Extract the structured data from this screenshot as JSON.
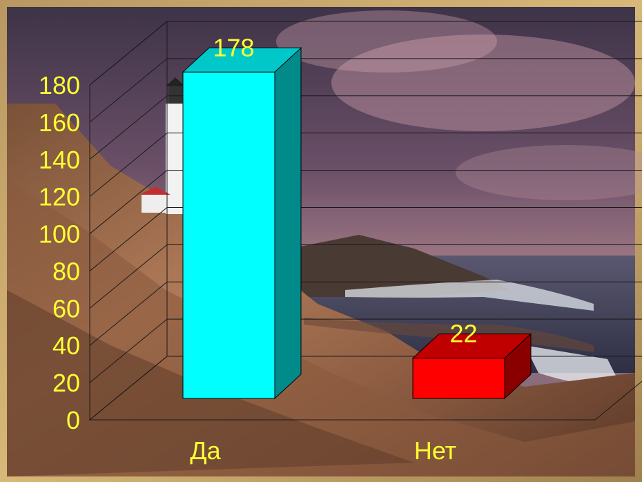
{
  "colors": {
    "label_text": "#ffff33",
    "grid_line": "#1a1a1a",
    "frame": "#c8a060"
  },
  "chart_data": {
    "type": "bar",
    "style": "3d",
    "categories": [
      "Да",
      "Нет"
    ],
    "values": [
      178,
      22
    ],
    "data_labels": [
      "178",
      "22"
    ],
    "series": [
      {
        "values": [
          178,
          22
        ],
        "colors": [
          "#00ffff",
          "#ff0000"
        ]
      }
    ],
    "title": "",
    "xlabel": "",
    "ylabel": "",
    "ylim": [
      0,
      180
    ],
    "y_ticks": [
      0,
      20,
      40,
      60,
      80,
      100,
      120,
      140,
      160,
      180
    ],
    "grid": true,
    "legend": "none"
  }
}
